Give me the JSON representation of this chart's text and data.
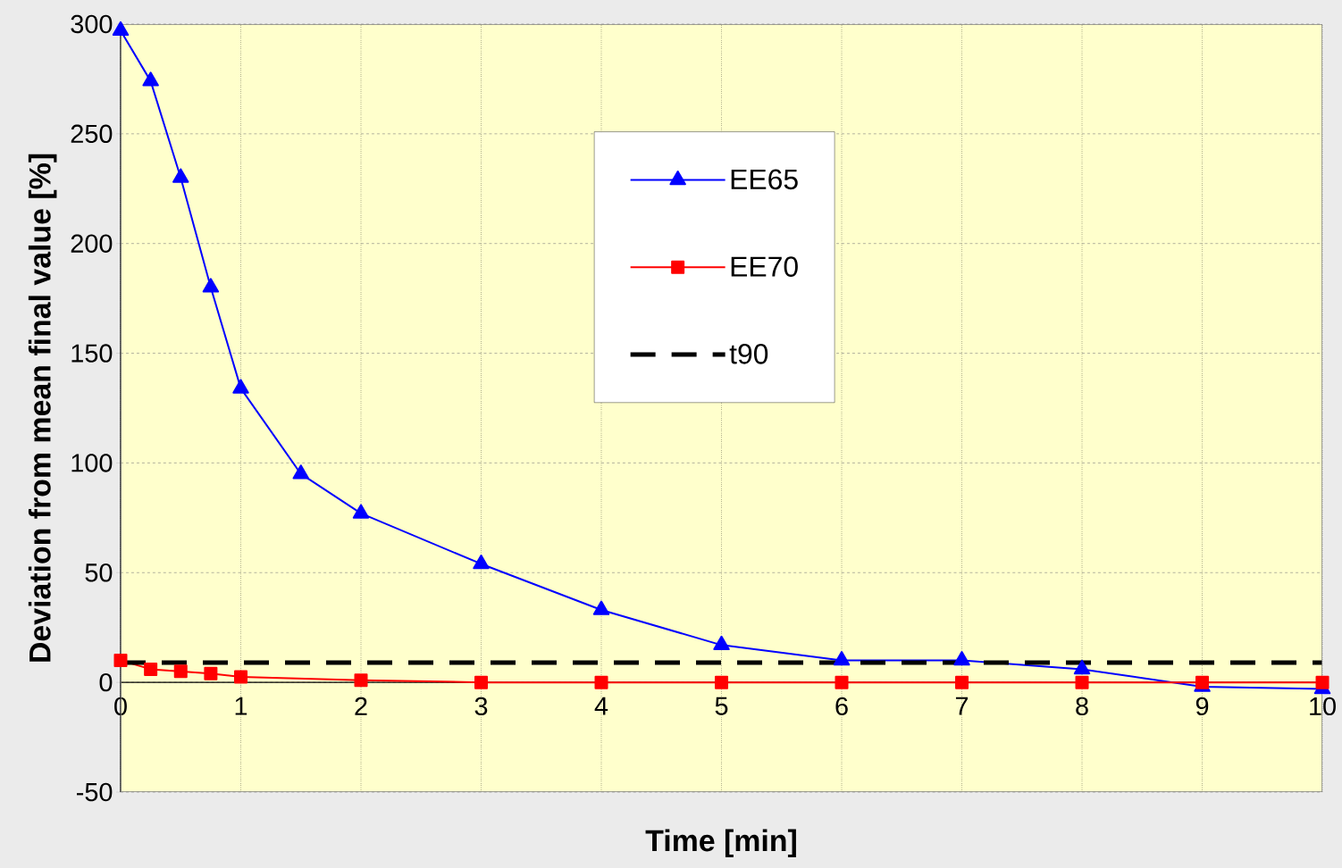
{
  "chart_data": {
    "type": "line",
    "xlabel": "Time [min]",
    "ylabel": "Deviation from mean final value [%]",
    "xlim": [
      0,
      10
    ],
    "ylim": [
      -50,
      300
    ],
    "xticks": [
      0,
      1,
      2,
      3,
      4,
      5,
      6,
      7,
      8,
      9,
      10
    ],
    "yticks": [
      -50,
      0,
      50,
      100,
      150,
      200,
      250,
      300
    ],
    "grid": true,
    "legend": "top",
    "series": [
      {
        "name": "EE65",
        "color": "#0000ff",
        "marker": "triangle",
        "line_style": "solid",
        "x": [
          0,
          0.25,
          0.5,
          0.75,
          1,
          1.5,
          2,
          3,
          4,
          5,
          6,
          7,
          8,
          9,
          10
        ],
        "values": [
          297,
          274,
          230,
          180,
          134,
          95,
          77,
          54,
          33,
          17,
          10,
          10,
          6,
          -2,
          -3
        ]
      },
      {
        "name": "EE70",
        "color": "#ff0000",
        "marker": "square",
        "line_style": "solid",
        "x": [
          0,
          0.25,
          0.5,
          0.75,
          1,
          2,
          3,
          4,
          5,
          6,
          7,
          8,
          9,
          10
        ],
        "values": [
          10,
          6,
          5,
          4,
          2.5,
          1,
          0,
          0,
          0,
          0,
          0,
          0,
          0,
          0
        ]
      },
      {
        "name": "t90",
        "color": "#000000",
        "marker": "none",
        "line_style": "dashed",
        "x": [
          0,
          10
        ],
        "values": [
          9,
          9
        ]
      }
    ]
  }
}
